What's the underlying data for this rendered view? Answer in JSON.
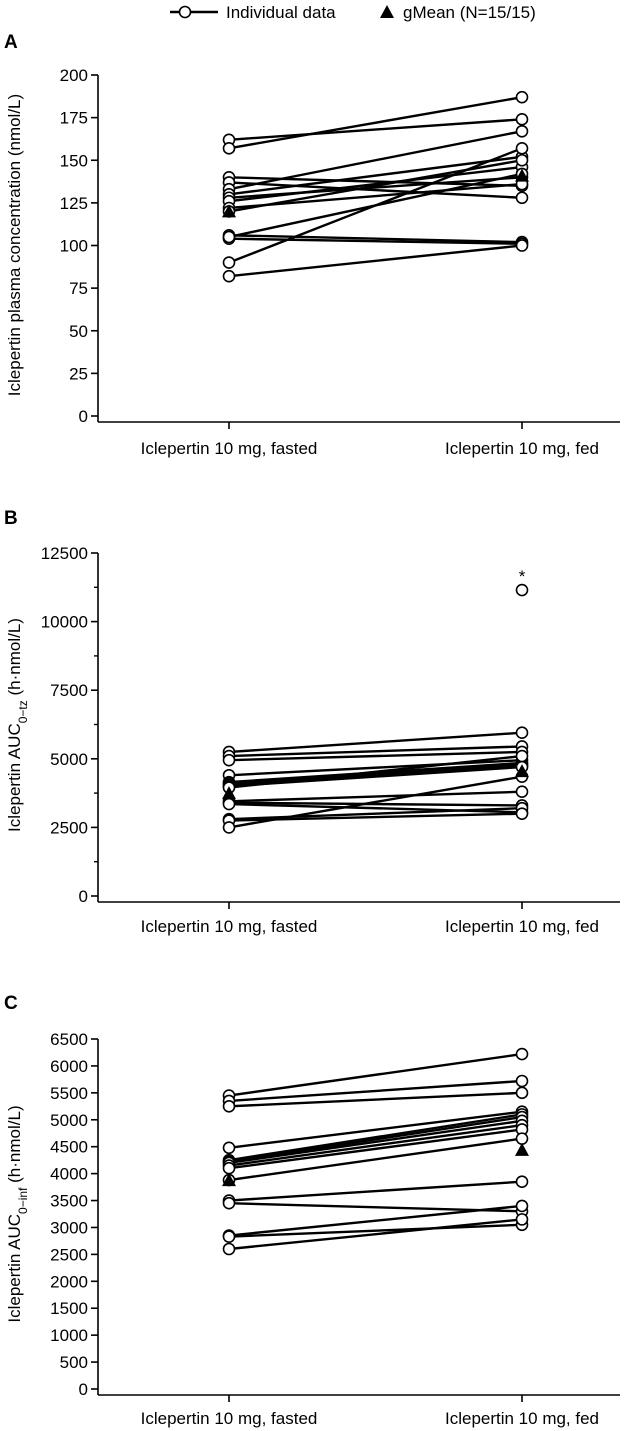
{
  "legend": {
    "individual_label": "Individual data",
    "gmean_label": "gMean (N=15/15)"
  },
  "chart_data": [
    {
      "type": "line",
      "panel": "A",
      "ylabel": "Iclepertin plasma concentration (nmol/L)",
      "categories": [
        "Iclepertin 10 mg, fasted",
        "Iclepertin 10 mg, fed"
      ],
      "ylim": [
        0,
        200
      ],
      "yticks": [
        0,
        25,
        50,
        75,
        100,
        125,
        150,
        175,
        200
      ],
      "individuals": [
        [
          162,
          174
        ],
        [
          157,
          187
        ],
        [
          140,
          135
        ],
        [
          137,
          128
        ],
        [
          133,
          167
        ],
        [
          130,
          152
        ],
        [
          128,
          140
        ],
        [
          126,
          146
        ],
        [
          122,
          136
        ],
        [
          120,
          150
        ],
        [
          106,
          102
        ],
        [
          104,
          101
        ],
        [
          105,
          142
        ],
        [
          90,
          157
        ],
        [
          82,
          100
        ]
      ],
      "gmean": [
        120,
        141
      ],
      "annotations": []
    },
    {
      "type": "line",
      "panel": "B",
      "ylabel": "Iclepertin AUC",
      "ylabel_sub": "0−tz",
      "ylabel_tail": " (h·nmol/L)",
      "categories": [
        "Iclepertin 10 mg, fasted",
        "Iclepertin 10 mg, fed"
      ],
      "ylim": [
        0,
        12500
      ],
      "yticks": [
        0,
        2500,
        5000,
        7500,
        10000,
        12500
      ],
      "individuals": [
        [
          5250,
          5950
        ],
        [
          5100,
          5450
        ],
        [
          4950,
          5250
        ],
        [
          4400,
          4950
        ],
        [
          4150,
          4850
        ],
        [
          4100,
          4800
        ],
        [
          4050,
          4750
        ],
        [
          4000,
          4700
        ],
        [
          3950,
          5100
        ],
        [
          3450,
          3800
        ],
        [
          3400,
          3300
        ],
        [
          3350,
          3050
        ],
        [
          2800,
          3200
        ],
        [
          2750,
          3000
        ],
        [
          2500,
          4350
        ]
      ],
      "gmean": [
        3750,
        4550
      ],
      "outlier": {
        "category": 1,
        "value": 11150,
        "marker_label": "*"
      }
    },
    {
      "type": "line",
      "panel": "C",
      "ylabel": "Iclepertin AUC",
      "ylabel_sub": "0−inf",
      "ylabel_tail": " (h·nmol/L)",
      "categories": [
        "Iclepertin 10 mg, fasted",
        "Iclepertin 10 mg, fed"
      ],
      "ylim": [
        0,
        6500
      ],
      "yticks": [
        0,
        500,
        1000,
        1500,
        2000,
        2500,
        3000,
        3500,
        4000,
        4500,
        5000,
        5500,
        6000,
        6500
      ],
      "individuals": [
        [
          5450,
          6220
        ],
        [
          5350,
          5720
        ],
        [
          5250,
          5500
        ],
        [
          4480,
          5150
        ],
        [
          4250,
          5100
        ],
        [
          4220,
          5050
        ],
        [
          4200,
          4980
        ],
        [
          4150,
          4900
        ],
        [
          4100,
          4820
        ],
        [
          3880,
          4650
        ],
        [
          3500,
          3850
        ],
        [
          3450,
          3300
        ],
        [
          2850,
          3400
        ],
        [
          2830,
          3050
        ],
        [
          2600,
          3150
        ]
      ],
      "gmean": [
        3880,
        4440
      ],
      "annotations": []
    }
  ]
}
